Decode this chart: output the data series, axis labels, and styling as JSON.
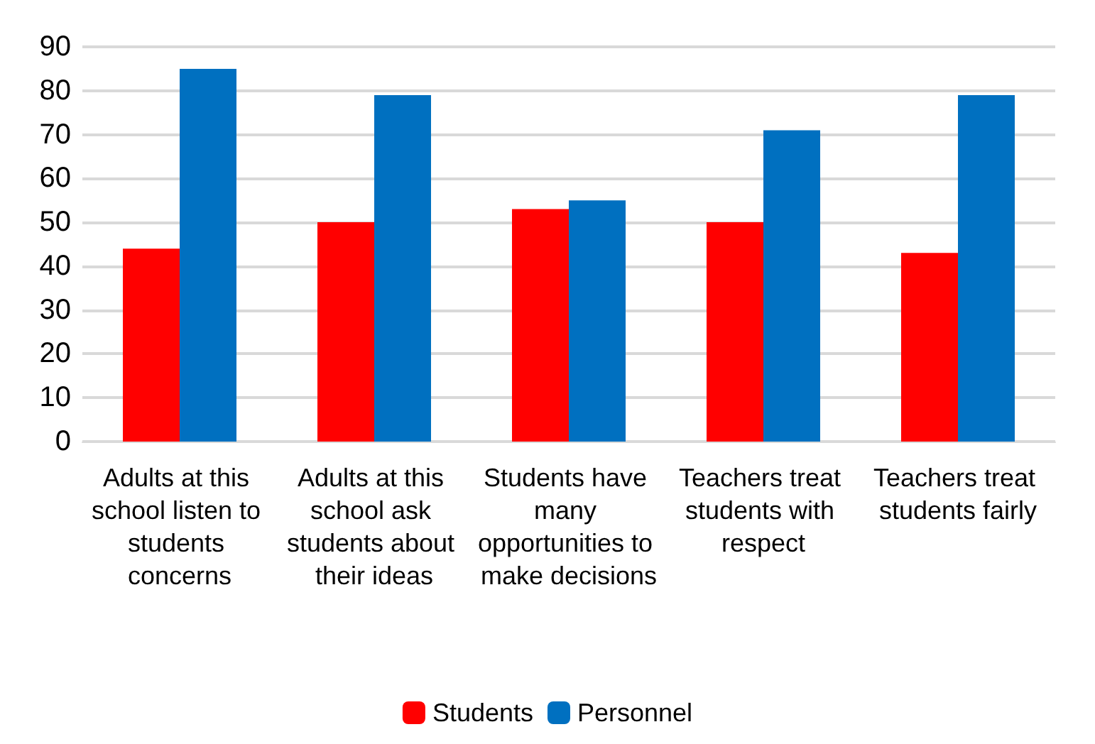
{
  "chart_data": {
    "type": "bar",
    "categories": [
      "Adults at this school listen to students concerns",
      "Adults at this school ask students about their ideas",
      "Students have many opportunities to make decisions",
      "Teachers treat students with respect",
      "Teachers treat students fairly"
    ],
    "series": [
      {
        "name": "Students",
        "color": "#ff0000",
        "values": [
          44,
          50,
          53,
          50,
          43
        ]
      },
      {
        "name": "Personnel",
        "color": "#0070c0",
        "values": [
          85,
          79,
          55,
          71,
          79
        ]
      }
    ],
    "ylim": [
      0,
      90
    ],
    "yticks": [
      0,
      10,
      20,
      30,
      40,
      50,
      60,
      70,
      80,
      90
    ],
    "grid": "y",
    "legend": "bottom"
  }
}
